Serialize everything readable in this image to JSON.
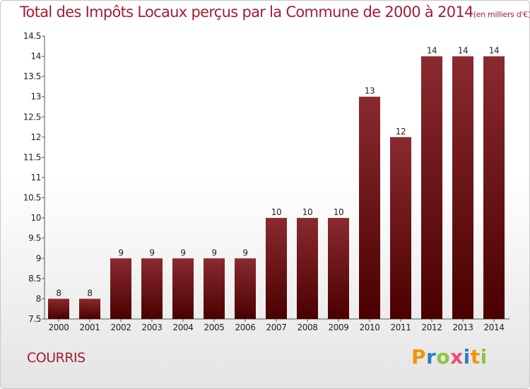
{
  "title": "Total des Impôts Locaux perçus par la Commune de 2000 à 2014",
  "unit_note": "(en milliers d'€)",
  "commune": "COURRIS",
  "brand": {
    "text": "Proxiti",
    "letters": [
      "P",
      "r",
      "o",
      "x",
      "i",
      "t",
      "i"
    ],
    "colors": [
      "#f29400",
      "#2f7fc1",
      "#8cc63f",
      "#e94e77",
      "#2f7fc1",
      "#f29400",
      "#8cc63f"
    ]
  },
  "colors": {
    "bar_dark": "#4a0000",
    "bar_light": "#8a2a30",
    "title": "#a31d35"
  },
  "chart_data": {
    "type": "bar",
    "title": "Total des Impôts Locaux perçus par la Commune de 2000 à 2014",
    "ylabel": "en milliers d'€",
    "xlabel": "",
    "categories": [
      "2000",
      "2001",
      "2002",
      "2003",
      "2004",
      "2005",
      "2006",
      "2007",
      "2008",
      "2009",
      "2010",
      "2011",
      "2012",
      "2013",
      "2014"
    ],
    "values": [
      8,
      8,
      9,
      9,
      9,
      9,
      9,
      10,
      10,
      10,
      13,
      12,
      14,
      14,
      14
    ],
    "ylim": [
      7.5,
      14.5
    ],
    "yticks": [
      "7.5",
      "8",
      "8.5",
      "9",
      "9.5",
      "10",
      "10.5",
      "11",
      "11.5",
      "12",
      "12.5",
      "13",
      "13.5",
      "14",
      "14.5"
    ],
    "grid": false,
    "legend": "none"
  }
}
